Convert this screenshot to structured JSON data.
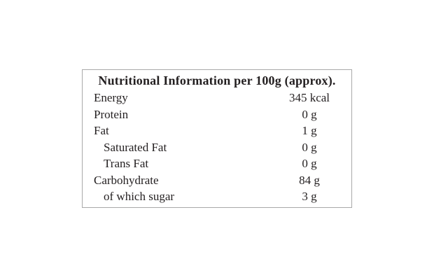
{
  "nutrition_panel": {
    "title": "Nutritional Information per 100g (approx).",
    "text_color": "#231f20",
    "border_color": "#a9a9a9",
    "background_color": "#ffffff",
    "rows": [
      {
        "label": "Energy",
        "value": "345 kcal",
        "indent": false
      },
      {
        "label": "Protein",
        "value": "0 g",
        "indent": false
      },
      {
        "label": "Fat",
        "value": "1 g",
        "indent": false
      },
      {
        "label": "Saturated Fat",
        "value": "0 g",
        "indent": true
      },
      {
        "label": "Trans Fat",
        "value": "0 g",
        "indent": true
      },
      {
        "label": "Carbohydrate",
        "value": "84 g",
        "indent": false
      },
      {
        "label": "of which sugar",
        "value": "3 g",
        "indent": true
      }
    ]
  }
}
